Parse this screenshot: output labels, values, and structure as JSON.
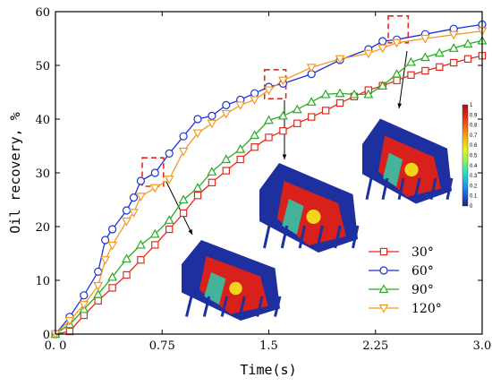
{
  "chart_data": {
    "type": "line",
    "xlabel": "Time(s)",
    "ylabel": "Oil recovery, %",
    "xlim": [
      0,
      3.0
    ],
    "ylim": [
      0,
      60
    ],
    "xticks": [
      0,
      0.75,
      1.5,
      2.25,
      3.0
    ],
    "xtick_labels": [
      "0. 0",
      "0.75",
      "1.5",
      "2.25",
      "3.0"
    ],
    "yticks": [
      0,
      10,
      20,
      30,
      40,
      50,
      60
    ],
    "ytick_labels": [
      "0",
      "10",
      "20",
      "30",
      "40",
      "50",
      "60"
    ],
    "legend_position": "lower-right",
    "grid": false,
    "series": [
      {
        "name": "30°",
        "color": "#e8281e",
        "marker": "square",
        "x": [
          0,
          0.1,
          0.2,
          0.3,
          0.4,
          0.5,
          0.6,
          0.7,
          0.8,
          0.9,
          1.0,
          1.1,
          1.2,
          1.3,
          1.4,
          1.5,
          1.6,
          1.7,
          1.8,
          1.9,
          2.0,
          2.1,
          2.2,
          2.3,
          2.4,
          2.5,
          2.6,
          2.7,
          2.8,
          2.9,
          3.0
        ],
        "y": [
          0,
          0.5,
          3.5,
          6.2,
          8.6,
          11,
          13.8,
          16.6,
          19.5,
          22.5,
          25.8,
          28.2,
          30.4,
          32.5,
          34.8,
          36.6,
          37.8,
          39.2,
          40.4,
          41.6,
          43,
          44.2,
          45.4,
          46.2,
          47.2,
          48.2,
          49,
          49.7,
          50.5,
          51.2,
          51.8
        ]
      },
      {
        "name": "60°",
        "color": "#1c32d9",
        "marker": "circle",
        "x": [
          0,
          0.1,
          0.2,
          0.3,
          0.35,
          0.4,
          0.5,
          0.55,
          0.6,
          0.7,
          0.8,
          0.9,
          1.0,
          1.1,
          1.2,
          1.3,
          1.4,
          1.5,
          1.6,
          1.8,
          2.0,
          2.2,
          2.3,
          2.4,
          2.6,
          2.8,
          3.0
        ],
        "y": [
          0,
          3.2,
          7.2,
          11.6,
          17.5,
          19.5,
          23,
          25.4,
          28.5,
          30,
          33.6,
          36.8,
          40,
          40.6,
          42.6,
          43.6,
          44.8,
          46,
          46.6,
          48.4,
          51,
          53,
          54.5,
          54.8,
          55.8,
          56.8,
          57.6
        ]
      },
      {
        "name": "90°",
        "color": "#2bab22",
        "marker": "triangle-up",
        "x": [
          0,
          0.1,
          0.2,
          0.3,
          0.4,
          0.5,
          0.6,
          0.7,
          0.8,
          0.9,
          1.0,
          1.1,
          1.2,
          1.3,
          1.4,
          1.5,
          1.6,
          1.7,
          1.8,
          1.9,
          2.0,
          2.1,
          2.2,
          2.3,
          2.4,
          2.5,
          2.6,
          2.7,
          2.8,
          2.9,
          3.0
        ],
        "y": [
          0,
          1.8,
          4.6,
          7.4,
          10.6,
          14,
          16.6,
          18.6,
          21.2,
          25,
          27.2,
          30.2,
          32.5,
          34.4,
          37,
          39.8,
          40.6,
          41.8,
          43.2,
          44.6,
          44.8,
          44.6,
          44.6,
          46.2,
          48.4,
          50.6,
          51.5,
          52.3,
          53.2,
          54,
          54.6
        ]
      },
      {
        "name": "120°",
        "color": "#f39a25",
        "marker": "triangle-down",
        "x": [
          0,
          0.1,
          0.2,
          0.3,
          0.35,
          0.4,
          0.5,
          0.55,
          0.6,
          0.7,
          0.8,
          0.9,
          1.0,
          1.1,
          1.2,
          1.3,
          1.4,
          1.5,
          1.6,
          1.8,
          2.0,
          2.2,
          2.3,
          2.4,
          2.6,
          2.8,
          3.0
        ],
        "y": [
          0,
          2.5,
          5.5,
          9,
          13.8,
          16.5,
          21,
          22.6,
          25.6,
          27.2,
          28.8,
          34,
          37.4,
          39.2,
          41,
          42.6,
          43.6,
          45.4,
          47.2,
          49.6,
          51.2,
          52.2,
          53.2,
          54.2,
          55,
          55.7,
          56.4
        ]
      }
    ],
    "highlight_boxes": [
      {
        "x": [
          0.61,
          0.76
        ],
        "y": [
          27.5,
          32.8
        ]
      },
      {
        "x": [
          1.47,
          1.62
        ],
        "y": [
          43.8,
          49.2
        ]
      },
      {
        "x": [
          2.34,
          2.48
        ],
        "y": [
          54.2,
          59.2
        ]
      }
    ],
    "colorbar": {
      "ticks": [
        "0",
        "0.1",
        "0.2",
        "0.3",
        "0.4",
        "0.5",
        "0.6",
        "0.7",
        "0.8",
        "0.9",
        "1"
      ],
      "colors": [
        "#1a237e",
        "#1e5fd6",
        "#1fa4e8",
        "#2ce0c0",
        "#8ef25a",
        "#e8f21e",
        "#f7b31a",
        "#f26a16",
        "#e02a14",
        "#b01010"
      ]
    }
  }
}
